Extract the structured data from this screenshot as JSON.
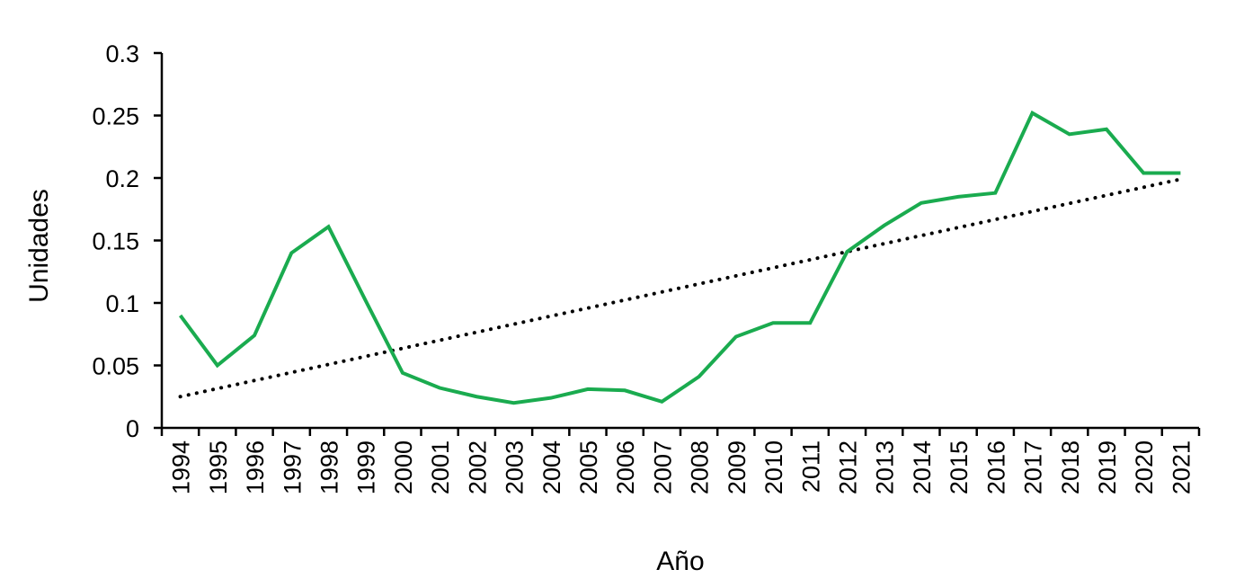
{
  "chart_data": {
    "type": "line",
    "title": "",
    "xlabel": "Año",
    "ylabel": "Unidades",
    "ylim": [
      0,
      0.3
    ],
    "yticks": [
      "0",
      "0.05",
      "0.1",
      "0.15",
      "0.2",
      "0.25",
      "0.3"
    ],
    "categories": [
      "1994",
      "1995",
      "1996",
      "1997",
      "1998",
      "1999",
      "2000",
      "2001",
      "2002",
      "2003",
      "2004",
      "2005",
      "2006",
      "2007",
      "2008",
      "2009",
      "2010",
      "2011",
      "2012",
      "2013",
      "2014",
      "2015",
      "2016",
      "2017",
      "2018",
      "2019",
      "2020",
      "2021"
    ],
    "series": [
      {
        "values": [
          0.09,
          0.05,
          0.074,
          0.14,
          0.161,
          0.102,
          0.044,
          0.032,
          0.025,
          0.02,
          0.024,
          0.031,
          0.03,
          0.021,
          0.041,
          0.073,
          0.084,
          0.084,
          0.141,
          0.162,
          0.18,
          0.185,
          0.188,
          0.252,
          0.235,
          0.239,
          0.204,
          0.204
        ],
        "color": "#1aab4f",
        "style": "solid"
      }
    ],
    "trendline": {
      "type": "linear",
      "color": "#000000",
      "style": "dotted",
      "start": 0.025,
      "end": 0.199
    },
    "grid": false,
    "legend": "none"
  }
}
